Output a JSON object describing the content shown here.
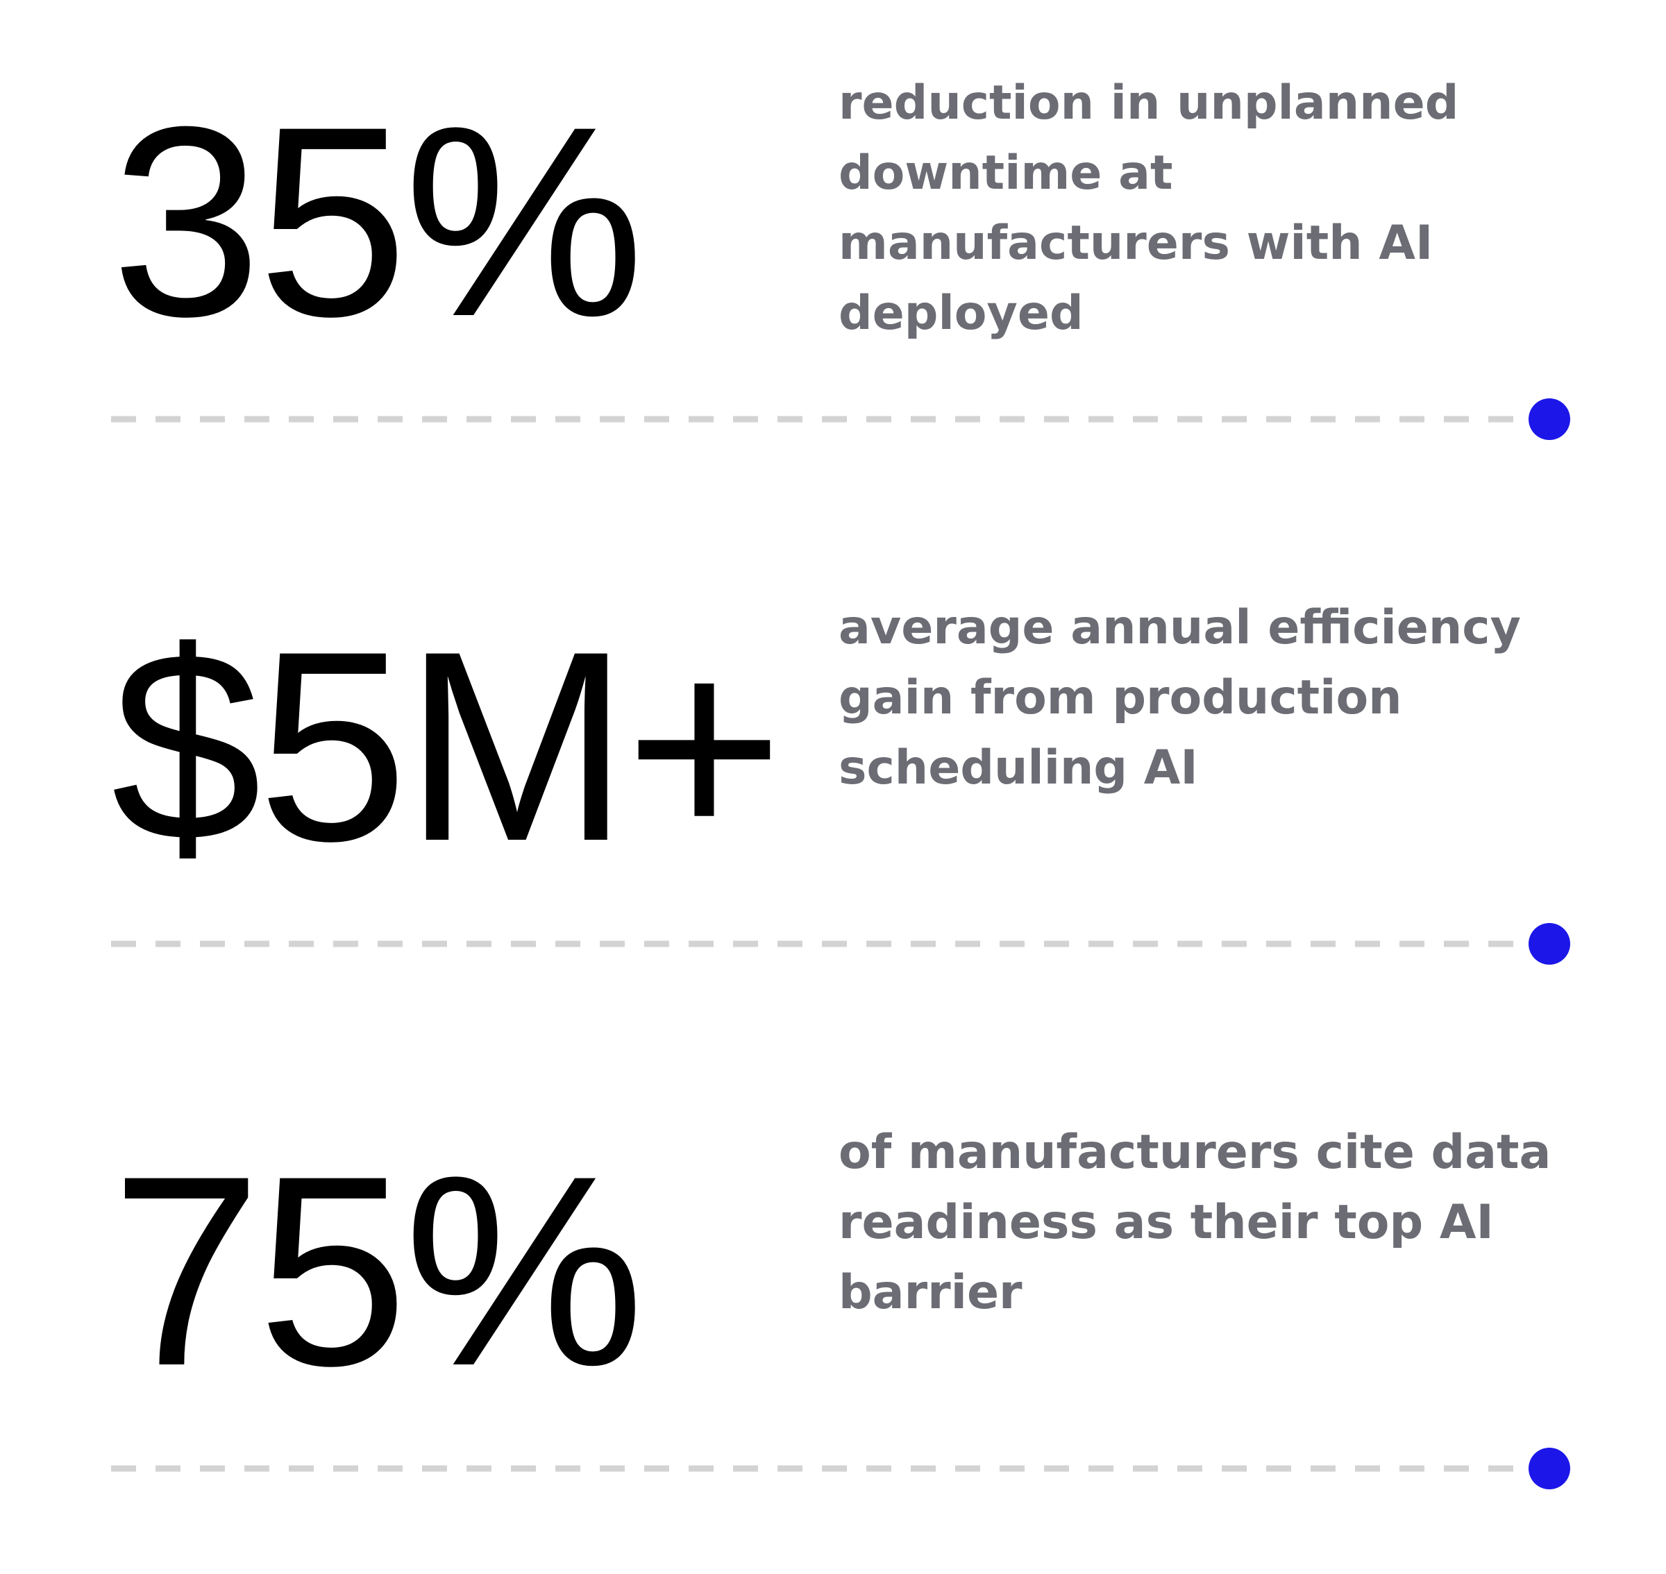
{
  "accent_color": "#1c17e8",
  "dash_color": "#d3d3d3",
  "stats": [
    {
      "value": "35%",
      "description": "reduction in unplanned downtime at manufacturers with AI deployed"
    },
    {
      "value": "$5M+",
      "description": "average annual efficiency gain from production scheduling AI"
    },
    {
      "value": "75%",
      "description": "of manufacturers cite data readiness as their top AI barrier"
    }
  ]
}
